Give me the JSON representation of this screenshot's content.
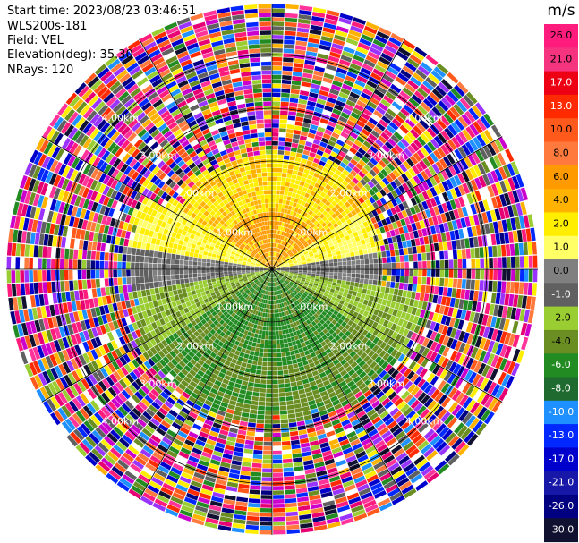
{
  "header": {
    "start_time": "Start time: 2023/08/23 03:46:51",
    "instrument": "WLS200s-181",
    "field": "Field: VEL",
    "elevation": "Elevation(deg): 35.30",
    "nrays": "NRays: 120"
  },
  "chart_data": {
    "type": "heatmap",
    "projection": "polar PPI",
    "field": "VEL",
    "n_rays": 120,
    "range_ring_labels": [
      "1.00km",
      "2.00km",
      "3.00km",
      "4.00km"
    ],
    "colorbar": {
      "unit": "m/s",
      "levels": [
        "26.0",
        "21.0",
        "17.0",
        "13.0",
        "10.0",
        "8.0",
        "6.0",
        "4.0",
        "2.0",
        "1.0",
        "0.0",
        "-1.0",
        "-2.0",
        "-4.0",
        "-6.0",
        "-8.0",
        "-10.0",
        "-13.0",
        "-17.0",
        "-21.0",
        "-26.0",
        "-30.0"
      ],
      "colors": [
        "#ff1c7c",
        "#f6337f",
        "#ee0014",
        "#ff2a00",
        "#ff5a1c",
        "#ff7a3c",
        "#ff9a00",
        "#ffb300",
        "#ffee00",
        "#ffff66",
        "#808080",
        "#606060",
        "#9acd32",
        "#6b8e23",
        "#228b22",
        "#1f6b2f",
        "#1e90ff",
        "#0028ff",
        "#0000cd",
        "#1818a8",
        "#000080",
        "#101030"
      ]
    }
  }
}
